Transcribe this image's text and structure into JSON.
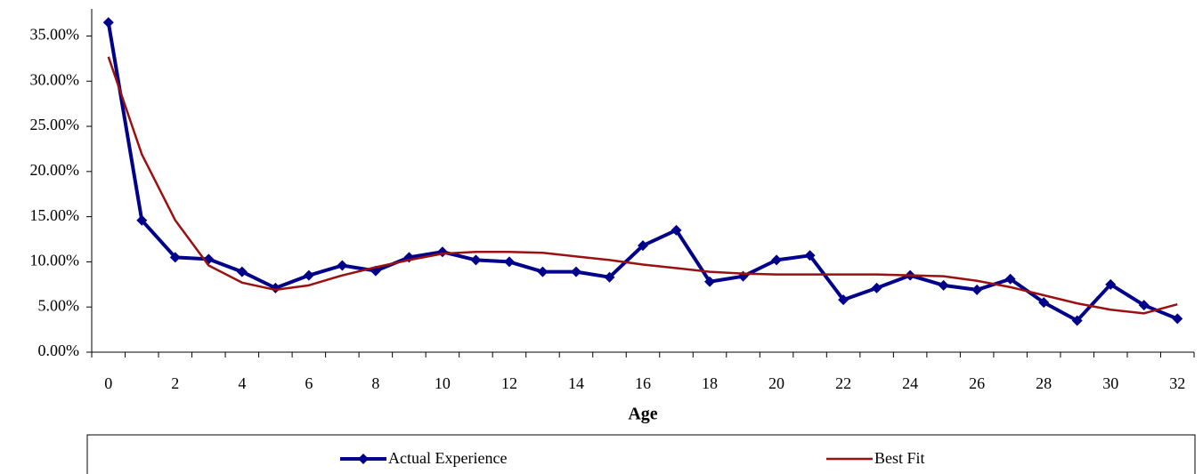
{
  "chart_data": {
    "type": "line",
    "x_label": "Age",
    "categories": [
      "0",
      null,
      "2",
      null,
      "4",
      null,
      "6",
      null,
      "8",
      null,
      "10",
      null,
      "12",
      null,
      "14",
      null,
      "16",
      null,
      "18",
      null,
      "20",
      null,
      "22",
      null,
      "24",
      null,
      "26",
      null,
      "28",
      null,
      "30",
      null,
      "32"
    ],
    "series": [
      {
        "name": "Actual Experience",
        "color": "#00008b",
        "marker": "diamond",
        "values": [
          36.5,
          14.6,
          10.5,
          10.3,
          8.9,
          7.1,
          8.5,
          9.6,
          9.0,
          10.5,
          11.1,
          10.2,
          10.0,
          8.9,
          8.9,
          8.3,
          11.8,
          13.5,
          7.8,
          8.4,
          10.2,
          10.7,
          5.8,
          7.1,
          8.5,
          7.4,
          6.9,
          8.1,
          5.5,
          3.5,
          7.5,
          5.2,
          3.7
        ]
      },
      {
        "name": "Best Fit",
        "color": "#9b1010",
        "values": [
          32.7,
          21.9,
          14.6,
          9.6,
          7.7,
          6.9,
          7.4,
          8.5,
          9.4,
          10.2,
          10.9,
          11.1,
          11.1,
          11.0,
          10.6,
          10.2,
          9.7,
          9.3,
          8.9,
          8.7,
          8.6,
          8.6,
          8.6,
          8.6,
          8.5,
          8.4,
          7.9,
          7.2,
          6.3,
          5.4,
          4.7,
          4.3,
          5.3
        ]
      }
    ],
    "ylim": [
      0,
      38
    ],
    "yticks": [
      {
        "value": 0,
        "label": "0.00%"
      },
      {
        "value": 5,
        "label": "5.00%"
      },
      {
        "value": 10,
        "label": "10.00%"
      },
      {
        "value": 15,
        "label": "15.00%"
      },
      {
        "value": 20,
        "label": "20.00%"
      },
      {
        "value": 25,
        "label": "25.00%"
      },
      {
        "value": 30,
        "label": "30.00%"
      },
      {
        "value": 35,
        "label": "35.00%"
      }
    ],
    "grid": false,
    "legend": "bottom"
  }
}
